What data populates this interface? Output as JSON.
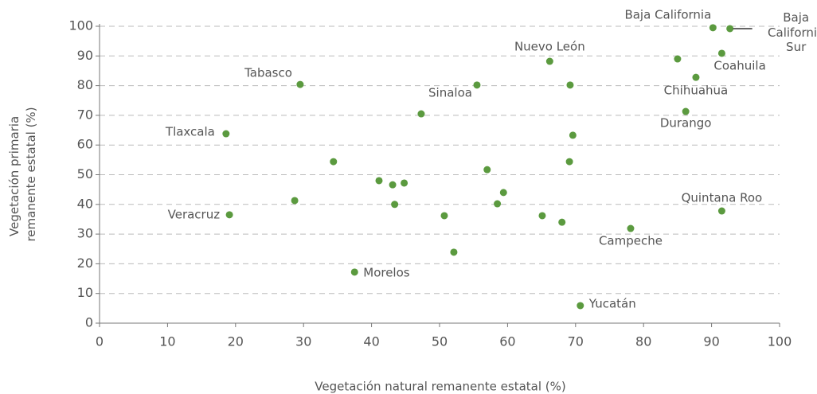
{
  "chart_data": {
    "type": "scatter",
    "xlabel": "Vegetación natural remanente estatal (%)",
    "ylabel": [
      "Vegetación primaria",
      "remanente estatal (%)"
    ],
    "color": "#5b9a3f",
    "x": [
      90.2,
      92.7,
      85.0,
      91.5,
      87.7,
      86.2,
      66.2,
      69.2,
      55.5,
      29.5,
      47.3,
      18.6,
      69.6,
      34.4,
      57.0,
      69.1,
      41.1,
      43.1,
      44.8,
      28.7,
      59.4,
      58.5,
      43.4,
      50.7,
      19.1,
      65.1,
      68.0,
      78.1,
      91.5,
      52.1,
      37.5,
      70.7
    ],
    "y": [
      99.5,
      99.2,
      89.0,
      90.9,
      82.8,
      71.3,
      88.2,
      80.2,
      80.2,
      80.4,
      70.5,
      63.8,
      63.3,
      54.4,
      51.7,
      54.4,
      48.0,
      46.6,
      47.2,
      41.3,
      44.0,
      40.2,
      40.0,
      36.2,
      36.5,
      36.2,
      34.0,
      31.9,
      37.8,
      23.9,
      17.2,
      5.9
    ],
    "labels": [
      "Baja California",
      [
        "Baja",
        "California",
        "Sur"
      ],
      null,
      "Coahuila",
      "Chihuahua",
      "Durango",
      "Nuevo León",
      null,
      "Sinaloa",
      "Tabasco",
      null,
      "Tlaxcala",
      null,
      null,
      null,
      null,
      null,
      null,
      null,
      null,
      null,
      null,
      null,
      null,
      "Veracruz",
      null,
      null,
      "Campeche",
      "Quintana Roo",
      null,
      "Morelos",
      "Yucatán"
    ],
    "xlim": [
      0,
      100
    ],
    "xticks": [
      0,
      10,
      20,
      30,
      40,
      50,
      60,
      70,
      80,
      90,
      100
    ],
    "ylim": [
      0,
      100
    ],
    "yticks": [
      0,
      10,
      20,
      30,
      40,
      50,
      60,
      70,
      80,
      90,
      100
    ],
    "grid": true
  }
}
